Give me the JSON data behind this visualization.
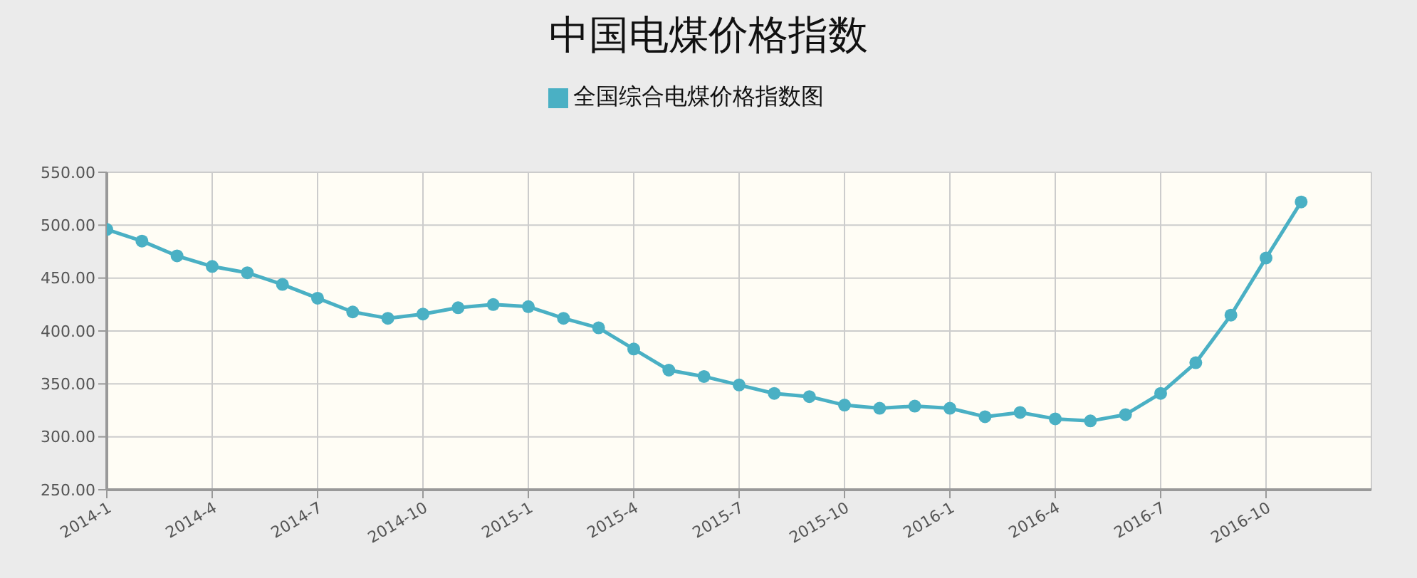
{
  "chart_data": {
    "type": "line",
    "title": "中国电煤价格指数",
    "categories": [
      "2014-1",
      null,
      null,
      "2014-4",
      null,
      null,
      "2014-7",
      null,
      null,
      "2014-10",
      null,
      null,
      "2015-1",
      null,
      null,
      "2015-4",
      null,
      null,
      "2015-7",
      null,
      null,
      "2015-10",
      null,
      null,
      "2016-1",
      null,
      null,
      "2016-4",
      null,
      null,
      "2016-7",
      null,
      null,
      "2016-10",
      null
    ],
    "series": [
      {
        "name": "全国综合电煤价格指数图",
        "color": "#4ab0c4",
        "values": [
          496,
          485,
          471,
          461,
          455,
          444,
          431,
          418,
          412,
          416,
          422,
          425,
          423,
          412,
          403,
          383,
          363,
          357,
          349,
          341,
          338,
          330,
          327,
          329,
          327,
          319,
          323,
          317,
          315,
          321,
          341,
          370,
          415,
          469,
          522
        ]
      }
    ],
    "ylim": [
      250,
      550
    ],
    "yticks": [
      {
        "value": 250,
        "label": "250.00"
      },
      {
        "value": 300,
        "label": "300.00"
      },
      {
        "value": 350,
        "label": "350.00"
      },
      {
        "value": 400,
        "label": "400.00"
      },
      {
        "value": 450,
        "label": "450.00"
      },
      {
        "value": 500,
        "label": "500.00"
      },
      {
        "value": 550,
        "label": "550.00"
      }
    ],
    "grid": true,
    "legend": "top",
    "marker": "circle",
    "line_style": "solid"
  }
}
